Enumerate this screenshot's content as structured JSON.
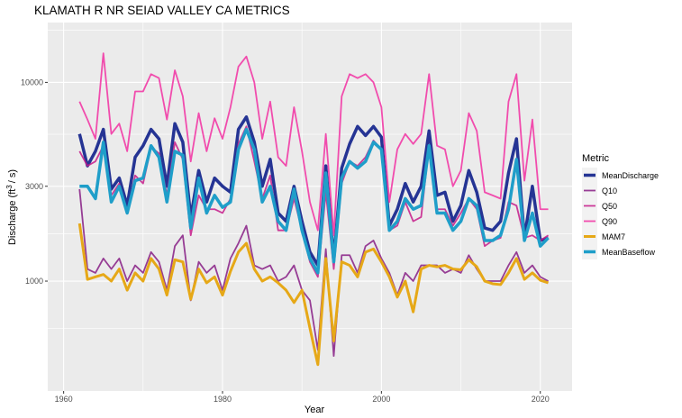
{
  "chart_data": {
    "type": "line",
    "title": "KLAMATH R NR SEIAD VALLEY CA  METRICS",
    "xlabel": "Year",
    "ylabel_main": "Discharge (ft",
    "ylabel_sup": "3",
    "ylabel_tail": "/ s)",
    "y_scale": "log10",
    "xlim": [
      1958,
      2024
    ],
    "ylim": [
      280,
      20000
    ],
    "x_ticks": [
      1960,
      1980,
      2000,
      2020
    ],
    "y_ticks": [
      1000,
      3000,
      10000
    ],
    "x_tick_labels": [
      "1960",
      "1980",
      "2000",
      "2020"
    ],
    "y_tick_labels": [
      "1000",
      "3000",
      "10000"
    ],
    "grid": true,
    "legend_title": "Metric",
    "legend_position": "right",
    "years": [
      1962,
      1963,
      1964,
      1965,
      1966,
      1967,
      1968,
      1969,
      1970,
      1971,
      1972,
      1973,
      1974,
      1975,
      1976,
      1977,
      1978,
      1979,
      1980,
      1981,
      1982,
      1983,
      1984,
      1985,
      1986,
      1987,
      1988,
      1989,
      1990,
      1991,
      1992,
      1993,
      1994,
      1995,
      1996,
      1997,
      1998,
      1999,
      2000,
      2001,
      2002,
      2003,
      2004,
      2005,
      2006,
      2007,
      2008,
      2009,
      2010,
      2011,
      2012,
      2013,
      2014,
      2015,
      2016,
      2017,
      2018,
      2019,
      2020,
      2021
    ],
    "series": [
      {
        "name": "MeanDischarge",
        "color": "#253494",
        "width": 3.5,
        "values": [
          5500,
          3800,
          4500,
          5800,
          2900,
          3300,
          2400,
          4200,
          4800,
          5800,
          5200,
          3000,
          6200,
          5000,
          2100,
          3600,
          2500,
          3300,
          3000,
          2800,
          5800,
          6700,
          5000,
          3000,
          4100,
          2200,
          2000,
          3000,
          2000,
          1400,
          1200,
          3800,
          1300,
          3700,
          4900,
          6000,
          5400,
          6000,
          5300,
          1900,
          2300,
          3100,
          2500,
          3000,
          5700,
          2700,
          2800,
          2000,
          2400,
          3600,
          2800,
          1850,
          1800,
          2000,
          3500,
          5200,
          1650,
          3000,
          1600,
          1650
        ]
      },
      {
        "name": "Q10",
        "color": "#7a0177",
        "alpha": 0.75,
        "width": 1.8,
        "values": [
          2900,
          1150,
          1100,
          1300,
          1150,
          1300,
          1000,
          1200,
          1100,
          1400,
          1250,
          900,
          1500,
          1700,
          800,
          1250,
          1100,
          1200,
          900,
          1300,
          1550,
          1900,
          1200,
          1150,
          1200,
          1000,
          1050,
          1200,
          900,
          800,
          450,
          1450,
          420,
          1350,
          1350,
          1100,
          1500,
          1600,
          1300,
          1100,
          850,
          1100,
          1000,
          1200,
          1200,
          1200,
          1100,
          1150,
          1100,
          1350,
          1150,
          1000,
          1000,
          1000,
          1200,
          1400,
          1100,
          1200,
          1050,
          1000
        ]
      },
      {
        "name": "Q50",
        "color": "#c51b8a",
        "alpha": 0.85,
        "width": 1.8,
        "values": [
          4500,
          3800,
          4000,
          4800,
          2700,
          3100,
          2200,
          3400,
          3100,
          4700,
          4400,
          2700,
          5000,
          4100,
          1700,
          2700,
          2300,
          2300,
          2200,
          2600,
          4900,
          6000,
          4000,
          2600,
          3400,
          1800,
          1800,
          2600,
          1800,
          1250,
          1050,
          2800,
          1150,
          3100,
          4000,
          3800,
          4200,
          5100,
          4600,
          1800,
          1900,
          2500,
          2000,
          2100,
          4800,
          2300,
          2300,
          1900,
          2200,
          2600,
          2300,
          1500,
          1600,
          1650,
          2500,
          2400,
          1650,
          1700,
          1600,
          1700
        ]
      },
      {
        "name": "Q90",
        "color": "#f23ba6",
        "alpha": 0.9,
        "width": 1.8,
        "values": [
          8000,
          6500,
          5200,
          14000,
          5500,
          6200,
          4500,
          9000,
          9000,
          11000,
          10500,
          6500,
          11500,
          8500,
          4000,
          7000,
          4500,
          6600,
          5200,
          7500,
          12000,
          13500,
          10000,
          5200,
          8000,
          4200,
          3800,
          7500,
          4500,
          2500,
          1800,
          5500,
          1700,
          8500,
          11000,
          10500,
          11000,
          10000,
          7500,
          2500,
          4600,
          5500,
          4900,
          5500,
          11000,
          4800,
          4600,
          3000,
          3600,
          7000,
          5700,
          2800,
          2700,
          2600,
          8000,
          11000,
          3200,
          6500,
          2300,
          2300
        ]
      },
      {
        "name": "MAM7",
        "color": "#e6a817",
        "width": 3,
        "values": [
          1950,
          1020,
          1050,
          1080,
          1000,
          1150,
          900,
          1100,
          1000,
          1300,
          1150,
          850,
          1280,
          1250,
          810,
          1150,
          980,
          1050,
          850,
          1120,
          1400,
          1550,
          1150,
          1000,
          1050,
          980,
          900,
          780,
          900,
          580,
          380,
          1300,
          500,
          1250,
          1200,
          1050,
          1400,
          1450,
          1250,
          1050,
          830,
          1000,
          700,
          1150,
          1200,
          1180,
          1200,
          1150,
          1140,
          1280,
          1180,
          1000,
          970,
          960,
          1100,
          1300,
          1020,
          1100,
          1010,
          980
        ]
      },
      {
        "name": "MeanBaseflow",
        "color": "#1f9ec9",
        "width": 3.5,
        "values": [
          3000,
          3000,
          2600,
          5000,
          2500,
          3000,
          2200,
          3200,
          3300,
          4800,
          4200,
          2500,
          4500,
          4300,
          1850,
          3300,
          2200,
          2700,
          2350,
          2500,
          4600,
          5800,
          4600,
          2500,
          3000,
          2000,
          1800,
          2900,
          1800,
          1300,
          1100,
          3500,
          1250,
          3300,
          4000,
          3700,
          4000,
          5000,
          4600,
          1800,
          2000,
          2600,
          2300,
          2400,
          4800,
          2200,
          2200,
          1800,
          2000,
          2600,
          2400,
          1600,
          1600,
          1700,
          2300,
          4100,
          1600,
          2200,
          1500,
          1650
        ]
      }
    ]
  }
}
